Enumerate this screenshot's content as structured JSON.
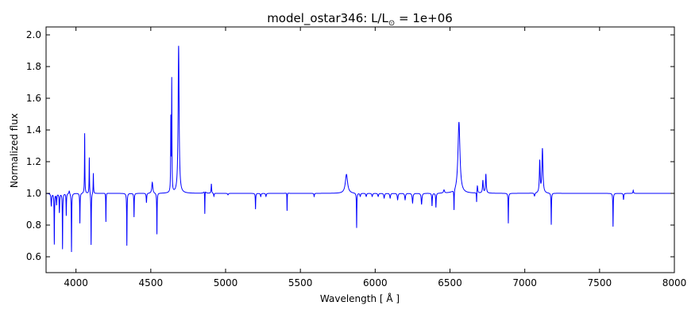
{
  "chart_data": {
    "type": "line",
    "title_prefix": "model_ostar346: L/L",
    "title_sub": "⊙",
    "title_suffix": " = 1e+06",
    "xlabel": "Wavelength [ Å ]",
    "ylabel": "Normalized flux",
    "xlim": [
      3800,
      8000
    ],
    "ylim": [
      0.5,
      2.05
    ],
    "xticks": [
      4000,
      4500,
      5000,
      5500,
      6000,
      6500,
      7000,
      7500,
      8000
    ],
    "yticks": [
      0.6,
      0.8,
      1.0,
      1.2,
      1.4,
      1.6,
      1.8,
      2.0
    ],
    "xtick_labels": [
      "4000",
      "4500",
      "5000",
      "5500",
      "6000",
      "6500",
      "7000",
      "7500",
      "8000"
    ],
    "ytick_labels": [
      "0.6",
      "0.8",
      "1.0",
      "1.2",
      "1.4",
      "1.6",
      "1.8",
      "2.0"
    ],
    "grid": false,
    "series": [
      {
        "color": "#0000ff",
        "continuum": 1.0,
        "features": [
          [
            3835,
            -0.08,
            2.5
          ],
          [
            3855,
            -0.32,
            1.5
          ],
          [
            3870,
            -0.07,
            2
          ],
          [
            3889,
            -0.12,
            2
          ],
          [
            3910,
            -0.35,
            1.5
          ],
          [
            3935,
            -0.14,
            1.5
          ],
          [
            3955,
            0.02,
            3
          ],
          [
            3970,
            -0.37,
            1.5
          ],
          [
            4026,
            -0.19,
            1.5
          ],
          [
            4058,
            0.38,
            1.5
          ],
          [
            4089,
            0.23,
            1.5
          ],
          [
            4101,
            -0.33,
            1.5
          ],
          [
            4116,
            0.13,
            1.5
          ],
          [
            4200,
            -0.22,
            1.5
          ],
          [
            4200,
            0.04,
            3.5
          ],
          [
            4340,
            -0.33,
            1.5
          ],
          [
            4388,
            -0.15,
            1.5
          ],
          [
            4471,
            -0.06,
            2
          ],
          [
            4510,
            0.07,
            4
          ],
          [
            4541,
            -0.26,
            1.5
          ],
          [
            4634,
            0.45,
            1.5
          ],
          [
            4640,
            0.7,
            1.5
          ],
          [
            4686,
            0.93,
            4
          ],
          [
            4861,
            -0.19,
            1.5
          ],
          [
            4861,
            0.06,
            4
          ],
          [
            4905,
            0.06,
            2
          ],
          [
            4922,
            -0.02,
            2
          ],
          [
            5016,
            -0.01,
            3
          ],
          [
            5200,
            -0.1,
            1.5
          ],
          [
            5235,
            -0.02,
            2.5
          ],
          [
            5270,
            -0.02,
            2.5
          ],
          [
            5411,
            0.05,
            3
          ],
          [
            5411,
            -0.16,
            1.5
          ],
          [
            5592,
            -0.02,
            2
          ],
          [
            5808,
            0.12,
            9
          ],
          [
            5876,
            -0.22,
            1.5
          ],
          [
            5900,
            -0.02,
            3
          ],
          [
            5940,
            -0.02,
            3
          ],
          [
            5980,
            -0.02,
            3
          ],
          [
            6020,
            -0.02,
            3
          ],
          [
            6060,
            -0.03,
            3
          ],
          [
            6100,
            -0.03,
            3
          ],
          [
            6150,
            -0.04,
            3
          ],
          [
            6200,
            -0.04,
            3
          ],
          [
            6250,
            -0.06,
            3
          ],
          [
            6310,
            -0.07,
            3
          ],
          [
            6380,
            -0.08,
            2
          ],
          [
            6406,
            -0.09,
            2
          ],
          [
            6460,
            0.02,
            4
          ],
          [
            6527,
            -0.13,
            1.5
          ],
          [
            6560,
            0.45,
            8
          ],
          [
            6678,
            -0.07,
            1.5
          ],
          [
            6683,
            0.05,
            3
          ],
          [
            6720,
            0.08,
            3
          ],
          [
            6740,
            0.12,
            3
          ],
          [
            6890,
            -0.19,
            1.5
          ],
          [
            7065,
            -0.02,
            3
          ],
          [
            7100,
            0.2,
            3
          ],
          [
            7118,
            0.28,
            4
          ],
          [
            7177,
            -0.2,
            1.5
          ],
          [
            7590,
            -0.21,
            1.5
          ],
          [
            7660,
            -0.04,
            2
          ],
          [
            7725,
            0.02,
            2
          ]
        ]
      }
    ]
  }
}
